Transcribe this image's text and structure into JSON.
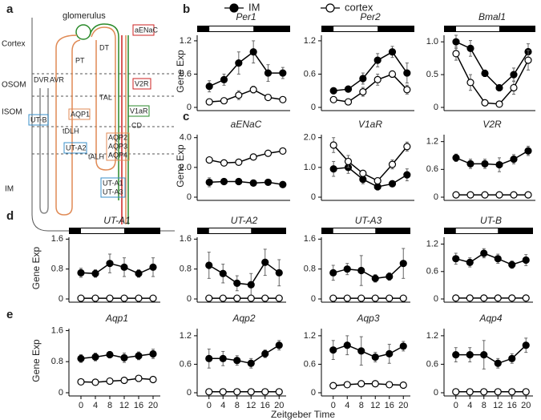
{
  "panel_labels": [
    "a",
    "b",
    "c",
    "d",
    "e"
  ],
  "legend": [
    {
      "name": "IM",
      "marker": "filled"
    },
    {
      "name": "cortex",
      "marker": "open"
    }
  ],
  "x_title": "Zeitgeber Time",
  "diagram": {
    "glomerulus": "glomerulus",
    "zones": [
      "Cortex",
      "OSOM",
      "ISOM",
      "IM"
    ],
    "segments": [
      "PT",
      "DT",
      "TAL",
      "CD",
      "DVR",
      "AVR",
      "tDLH",
      "tALH"
    ],
    "boxes": [
      "aENaC",
      "V2R",
      "V1aR",
      "UT-B",
      "AQP1",
      "UT-A2",
      "AQP2",
      "AQP3",
      "AQP4",
      "UT-A1",
      "UT-A3"
    ]
  },
  "chart_data": [
    {
      "type": "line",
      "title": "Per1",
      "ylabel": "Gene Exp",
      "light_period": [
        0,
        12
      ],
      "x": [
        0,
        4,
        8,
        12,
        16,
        20
      ],
      "xlim": [
        -2,
        22
      ],
      "ylim": [
        0,
        1.3
      ],
      "yticks": [
        0,
        0.6,
        1.2
      ],
      "series": [
        {
          "marker": "filled",
          "color": "#000000",
          "values": [
            0.38,
            0.5,
            0.8,
            1.0,
            0.62,
            0.62
          ],
          "errors": [
            0.1,
            0.1,
            0.2,
            0.2,
            0.15,
            0.1
          ]
        },
        {
          "marker": "open",
          "color": "#000000",
          "values": [
            0.1,
            0.12,
            0.22,
            0.32,
            0.18,
            0.14
          ],
          "errors": [
            0.03,
            0.04,
            0.08,
            0.06,
            0.04,
            0.03
          ]
        }
      ]
    },
    {
      "type": "line",
      "title": "Per2",
      "light_period": [
        0,
        12
      ],
      "x": [
        0,
        4,
        8,
        12,
        16,
        20
      ],
      "xlim": [
        -2,
        22
      ],
      "ylim": [
        0,
        1.3
      ],
      "yticks": [
        0,
        0.6,
        1.2
      ],
      "series": [
        {
          "marker": "filled",
          "color": "#000000",
          "values": [
            0.3,
            0.33,
            0.52,
            0.85,
            1.0,
            0.62
          ],
          "errors": [
            0.05,
            0.05,
            0.1,
            0.12,
            0.1,
            0.18
          ]
        },
        {
          "marker": "open",
          "color": "#000000",
          "values": [
            0.14,
            0.1,
            0.28,
            0.5,
            0.6,
            0.32
          ],
          "errors": [
            0.03,
            0.03,
            0.08,
            0.1,
            0.06,
            0.08
          ]
        }
      ]
    },
    {
      "type": "line",
      "title": "Bmal1",
      "light_period": [
        0,
        12
      ],
      "x": [
        0,
        4,
        8,
        12,
        16,
        20
      ],
      "xlim": [
        -2,
        22
      ],
      "ylim": [
        0,
        1.1
      ],
      "yticks": [
        0,
        0.5,
        {
          "value": 1,
          "label": "1.0"
        }
      ],
      "series": [
        {
          "marker": "filled",
          "color": "#000000",
          "values": [
            1.0,
            0.9,
            0.52,
            0.3,
            0.5,
            0.85
          ],
          "errors": [
            0.1,
            0.12,
            0.05,
            0.04,
            0.1,
            0.12
          ]
        },
        {
          "marker": "open",
          "color": "#000000",
          "values": [
            0.82,
            0.38,
            0.07,
            0.05,
            0.3,
            0.72
          ],
          "errors": [
            0.1,
            0.12,
            0.03,
            0.03,
            0.1,
            0.15
          ]
        }
      ]
    },
    {
      "type": "line",
      "title": "aENaC",
      "ylabel": "Gene Exp",
      "x": [
        0,
        4,
        8,
        12,
        16,
        20
      ],
      "xlim": [
        -2,
        22
      ],
      "ylim": [
        0,
        4.2
      ],
      "yticks": [
        0,
        {
          "value": 2,
          "label": "2.0"
        },
        {
          "value": 4,
          "label": "4.0"
        }
      ],
      "series": [
        {
          "marker": "filled",
          "color": "#000000",
          "values": [
            1.0,
            1.05,
            1.05,
            0.95,
            1.0,
            0.85
          ],
          "errors": [
            0.3,
            0.2,
            0.2,
            0.2,
            0.2,
            0.15
          ]
        },
        {
          "marker": "open",
          "color": "#000000",
          "values": [
            2.5,
            2.3,
            2.35,
            2.7,
            2.95,
            3.1
          ],
          "errors": [
            0.15,
            0.15,
            0.2,
            0.15,
            0.2,
            0.2
          ]
        }
      ]
    },
    {
      "type": "line",
      "title": "V1aR",
      "x": [
        0,
        4,
        8,
        12,
        16,
        20
      ],
      "xlim": [
        -2,
        22
      ],
      "ylim": [
        0,
        2.1
      ],
      "yticks": [
        0,
        {
          "value": 1,
          "label": "1.0"
        },
        {
          "value": 2,
          "label": "2.0"
        }
      ],
      "series": [
        {
          "marker": "filled",
          "color": "#000000",
          "values": [
            0.95,
            1.0,
            0.6,
            0.35,
            0.45,
            0.75
          ],
          "errors": [
            0.25,
            0.2,
            0.15,
            0.1,
            0.1,
            0.2
          ]
        },
        {
          "marker": "open",
          "color": "#000000",
          "values": [
            1.75,
            1.2,
            0.8,
            0.55,
            1.1,
            1.7
          ],
          "errors": [
            0.25,
            0.2,
            0.1,
            0.1,
            0.15,
            0.15
          ]
        }
      ]
    },
    {
      "type": "line",
      "title": "V2R",
      "x": [
        0,
        4,
        8,
        12,
        16,
        20
      ],
      "xlim": [
        -2,
        22
      ],
      "ylim": [
        0,
        1.35
      ],
      "yticks": [
        0,
        0.6,
        1.2
      ],
      "series": [
        {
          "marker": "filled",
          "color": "#000000",
          "values": [
            0.85,
            0.72,
            0.72,
            0.7,
            0.82,
            1.0
          ],
          "errors": [
            0.08,
            0.1,
            0.1,
            0.15,
            0.1,
            0.1
          ]
        },
        {
          "marker": "open",
          "color": "#000000",
          "values": [
            0.05,
            0.05,
            0.05,
            0.05,
            0.05,
            0.05
          ],
          "errors": [
            0.01,
            0.01,
            0.01,
            0.01,
            0.01,
            0.01
          ]
        }
      ]
    },
    {
      "type": "line",
      "title": "UT-A1",
      "ylabel": "Gene Exp",
      "light_period": [
        0,
        12
      ],
      "x": [
        0,
        4,
        8,
        12,
        16,
        20
      ],
      "xlim": [
        -2,
        22
      ],
      "ylim": [
        0,
        1.65
      ],
      "yticks": [
        0,
        0.8,
        1.6
      ],
      "series": [
        {
          "marker": "filled",
          "color": "#000000",
          "values": [
            0.7,
            0.68,
            0.95,
            0.85,
            0.68,
            0.85
          ],
          "errors": [
            0.12,
            0.1,
            0.25,
            0.25,
            0.1,
            0.25
          ]
        },
        {
          "marker": "open",
          "color": "#000000",
          "values": [
            0.02,
            0.02,
            0.02,
            0.02,
            0.02,
            0.02
          ],
          "errors": [
            0,
            0,
            0,
            0,
            0,
            0
          ]
        }
      ]
    },
    {
      "type": "line",
      "title": "UT-A2",
      "light_period": [
        0,
        12
      ],
      "x": [
        0,
        4,
        8,
        12,
        16,
        20
      ],
      "xlim": [
        -2,
        22
      ],
      "ylim": [
        0,
        1.65
      ],
      "yticks": [
        0,
        0.8,
        1.6
      ],
      "series": [
        {
          "marker": "filled",
          "color": "#000000",
          "values": [
            0.9,
            0.68,
            0.42,
            0.38,
            0.98,
            0.7
          ],
          "errors": [
            0.35,
            0.25,
            0.2,
            0.3,
            0.35,
            0.35
          ]
        },
        {
          "marker": "open",
          "color": "#000000",
          "values": [
            0.02,
            0.02,
            0.02,
            0.02,
            0.02,
            0.02
          ],
          "errors": [
            0,
            0,
            0,
            0,
            0,
            0
          ]
        }
      ]
    },
    {
      "type": "line",
      "title": "UT-A3",
      "light_period": [
        0,
        12
      ],
      "x": [
        0,
        4,
        8,
        12,
        16,
        20
      ],
      "xlim": [
        -2,
        22
      ],
      "ylim": [
        0,
        1.65
      ],
      "yticks": [
        0,
        0.8,
        1.6
      ],
      "series": [
        {
          "marker": "filled",
          "color": "#000000",
          "values": [
            0.7,
            0.8,
            0.76,
            0.55,
            0.6,
            0.95
          ],
          "errors": [
            0.2,
            0.15,
            0.4,
            0.1,
            0.1,
            0.4
          ]
        },
        {
          "marker": "open",
          "color": "#000000",
          "values": [
            0.02,
            0.02,
            0.02,
            0.02,
            0.02,
            0.02
          ],
          "errors": [
            0,
            0,
            0,
            0,
            0,
            0
          ]
        }
      ]
    },
    {
      "type": "line",
      "title": "UT-B",
      "light_period": [
        0,
        12
      ],
      "x": [
        0,
        4,
        8,
        12,
        16,
        20
      ],
      "xlim": [
        -2,
        22
      ],
      "ylim": [
        0,
        1.35
      ],
      "yticks": [
        0,
        0.6,
        1.2
      ],
      "series": [
        {
          "marker": "filled",
          "color": "#000000",
          "values": [
            0.88,
            0.8,
            1.0,
            0.88,
            0.75,
            0.85
          ],
          "errors": [
            0.12,
            0.1,
            0.1,
            0.1,
            0.08,
            0.12
          ]
        },
        {
          "marker": "open",
          "color": "#000000",
          "values": [
            0.02,
            0.02,
            0.02,
            0.02,
            0.02,
            0.02
          ],
          "errors": [
            0,
            0,
            0,
            0,
            0,
            0
          ]
        }
      ]
    },
    {
      "type": "line",
      "title": "Aqp1",
      "ylabel": "Gene Exp",
      "x": [
        0,
        4,
        8,
        12,
        16,
        20
      ],
      "xticks": [
        0,
        4,
        8,
        12,
        16,
        20
      ],
      "xlim": [
        -2,
        22
      ],
      "ylim": [
        0,
        1.65
      ],
      "yticks": [
        0,
        0.8,
        1.6
      ],
      "series": [
        {
          "marker": "filled",
          "color": "#000000",
          "values": [
            0.88,
            0.92,
            0.98,
            0.9,
            0.95,
            1.0
          ],
          "errors": [
            0.1,
            0.1,
            0.08,
            0.12,
            0.1,
            0.12
          ]
        },
        {
          "marker": "open",
          "color": "#000000",
          "values": [
            0.28,
            0.27,
            0.3,
            0.32,
            0.37,
            0.34
          ],
          "errors": [
            0.02,
            0.02,
            0.02,
            0.02,
            0.02,
            0.02
          ]
        }
      ]
    },
    {
      "type": "line",
      "title": "Aqp2",
      "x": [
        0,
        4,
        8,
        12,
        16,
        20
      ],
      "xticks": [
        0,
        4,
        8,
        12,
        16,
        20
      ],
      "xlim": [
        -2,
        22
      ],
      "ylim": [
        0,
        1.35
      ],
      "yticks": [
        0,
        0.6,
        1.2
      ],
      "series": [
        {
          "marker": "filled",
          "color": "#000000",
          "values": [
            0.72,
            0.72,
            0.68,
            0.62,
            0.82,
            1.0
          ],
          "errors": [
            0.2,
            0.15,
            0.1,
            0.1,
            0.08,
            0.1
          ]
        },
        {
          "marker": "open",
          "color": "#000000",
          "values": [
            0.02,
            0.02,
            0.02,
            0.02,
            0.02,
            0.02
          ],
          "errors": [
            0,
            0,
            0,
            0,
            0,
            0
          ]
        }
      ]
    },
    {
      "type": "line",
      "title": "Aqp3",
      "x": [
        0,
        4,
        8,
        12,
        16,
        20
      ],
      "xticks": [
        0,
        4,
        8,
        12,
        16,
        20
      ],
      "xlim": [
        -2,
        22
      ],
      "ylim": [
        0,
        1.35
      ],
      "yticks": [
        0,
        0.6,
        1.2
      ],
      "series": [
        {
          "marker": "filled",
          "color": "#000000",
          "values": [
            0.9,
            1.0,
            0.88,
            0.75,
            0.82,
            0.98
          ],
          "errors": [
            0.2,
            0.2,
            0.3,
            0.1,
            0.2,
            0.1
          ]
        },
        {
          "marker": "open",
          "color": "#000000",
          "values": [
            0.15,
            0.17,
            0.19,
            0.19,
            0.17,
            0.16
          ],
          "errors": [
            0.02,
            0.02,
            0.02,
            0.02,
            0.02,
            0.02
          ]
        }
      ]
    },
    {
      "type": "line",
      "title": "Aqp4",
      "x": [
        0,
        4,
        8,
        12,
        16,
        20
      ],
      "xticks": [
        0,
        4,
        8,
        12,
        16,
        20
      ],
      "xlim": [
        -2,
        22
      ],
      "ylim": [
        0,
        1.35
      ],
      "yticks": [
        0,
        0.6,
        1.2
      ],
      "series": [
        {
          "marker": "filled",
          "color": "#000000",
          "values": [
            0.8,
            0.8,
            0.8,
            0.62,
            0.72,
            1.0
          ],
          "errors": [
            0.15,
            0.15,
            0.3,
            0.1,
            0.1,
            0.15
          ]
        },
        {
          "marker": "open",
          "color": "#000000",
          "values": [
            0.02,
            0.02,
            0.02,
            0.02,
            0.02,
            0.02
          ],
          "errors": [
            0,
            0,
            0,
            0,
            0,
            0
          ]
        }
      ]
    }
  ]
}
